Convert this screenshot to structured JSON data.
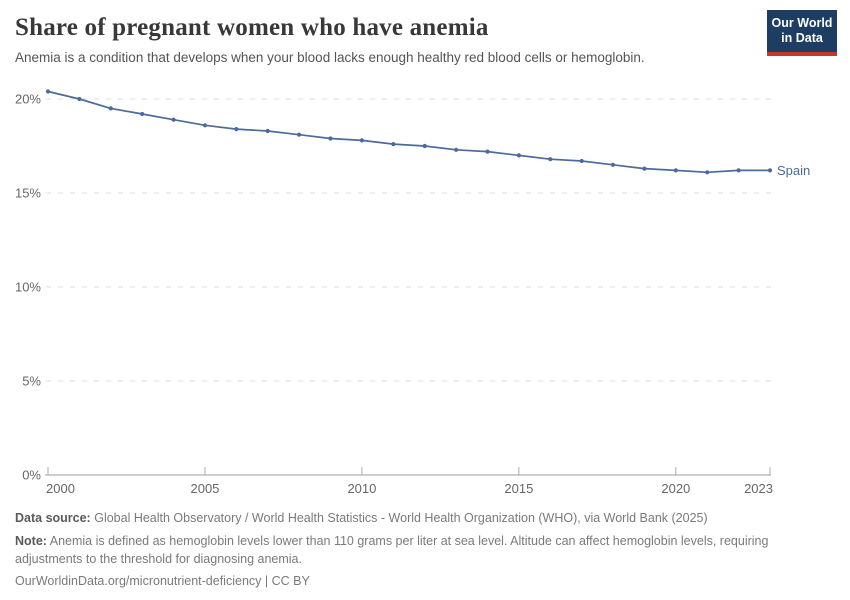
{
  "header": {
    "title": "Share of pregnant women who have anemia",
    "subtitle": "Anemia is a condition that develops when your blood lacks enough healthy red blood cells or hemoglobin.",
    "logo": {
      "line1": "Our World",
      "line2": "in Data",
      "bg_color": "#1d3d63",
      "accent_color": "#c0392b"
    }
  },
  "chart_data": {
    "type": "line",
    "title": "Share of pregnant women who have anemia",
    "unit": "%",
    "x": [
      2000,
      2001,
      2002,
      2003,
      2004,
      2005,
      2006,
      2007,
      2008,
      2009,
      2010,
      2011,
      2012,
      2013,
      2014,
      2015,
      2016,
      2017,
      2018,
      2019,
      2020,
      2021,
      2022,
      2023
    ],
    "series": [
      {
        "name": "Spain",
        "color": "#4C6A9C",
        "values": [
          20.4,
          20.0,
          19.5,
          19.2,
          18.9,
          18.6,
          18.4,
          18.3,
          18.1,
          17.9,
          17.8,
          17.6,
          17.5,
          17.3,
          17.2,
          17.0,
          16.8,
          16.7,
          16.5,
          16.3,
          16.2,
          16.1,
          16.2,
          16.2
        ]
      }
    ],
    "ylim": [
      0,
      21
    ],
    "yticks": [
      0,
      5,
      10,
      15,
      20
    ],
    "ytick_labels": [
      "0%",
      "5%",
      "10%",
      "15%",
      "20%"
    ],
    "xticks": [
      2000,
      2005,
      2010,
      2015,
      2020,
      2023
    ],
    "grid": "horizontal-dashed",
    "legend_position": "end-of-line-label",
    "colors": {
      "grid": "#dedede",
      "axis": "#9e9e9e",
      "tick_text": "#666666"
    }
  },
  "footer": {
    "datasource_label": "Data source:",
    "datasource_text": "Global Health Observatory / World Health Statistics - World Health Organization (WHO), via World Bank (2025)",
    "note_label": "Note:",
    "note_text": "Anemia is defined as hemoglobin levels lower than 110 grams per liter at sea level. Altitude can affect hemoglobin levels, requiring adjustments to the threshold for diagnosing anemia.",
    "license_line": "OurWorldinData.org/micronutrient-deficiency | CC BY"
  }
}
